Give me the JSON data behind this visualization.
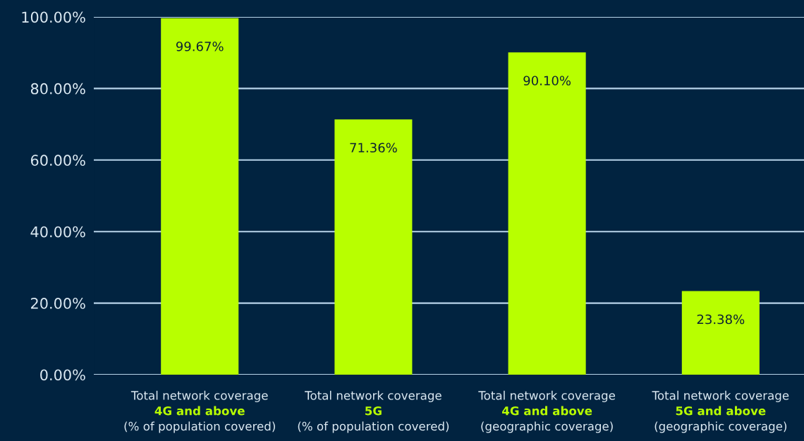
{
  "chart_data": {
    "type": "bar",
    "categories": [
      "Total network coverage\n4G and above\n(% of population covered)",
      "Total network coverage\n5G\n(% of population covered)",
      "Total network coverage\n4G and above\n(geographic coverage)",
      "Total network coverage\n5G and above\n(geographic coverage)"
    ],
    "values": [
      99.67,
      71.36,
      90.1,
      23.38
    ],
    "value_labels": [
      "99.67%",
      "71.36%",
      "90.10%",
      "23.38%"
    ],
    "color": "#b8ff00",
    "ylim": [
      0,
      100
    ],
    "yticks": [
      {
        "value": 0,
        "label": "0.00%"
      },
      {
        "value": 20,
        "label": "20.00%"
      },
      {
        "value": 40,
        "label": "40.00%"
      },
      {
        "value": 60,
        "label": "60.00%"
      },
      {
        "value": 80,
        "label": "80.00%"
      },
      {
        "value": 100,
        "label": "100.00%"
      }
    ],
    "grid": "y",
    "legend": false
  }
}
